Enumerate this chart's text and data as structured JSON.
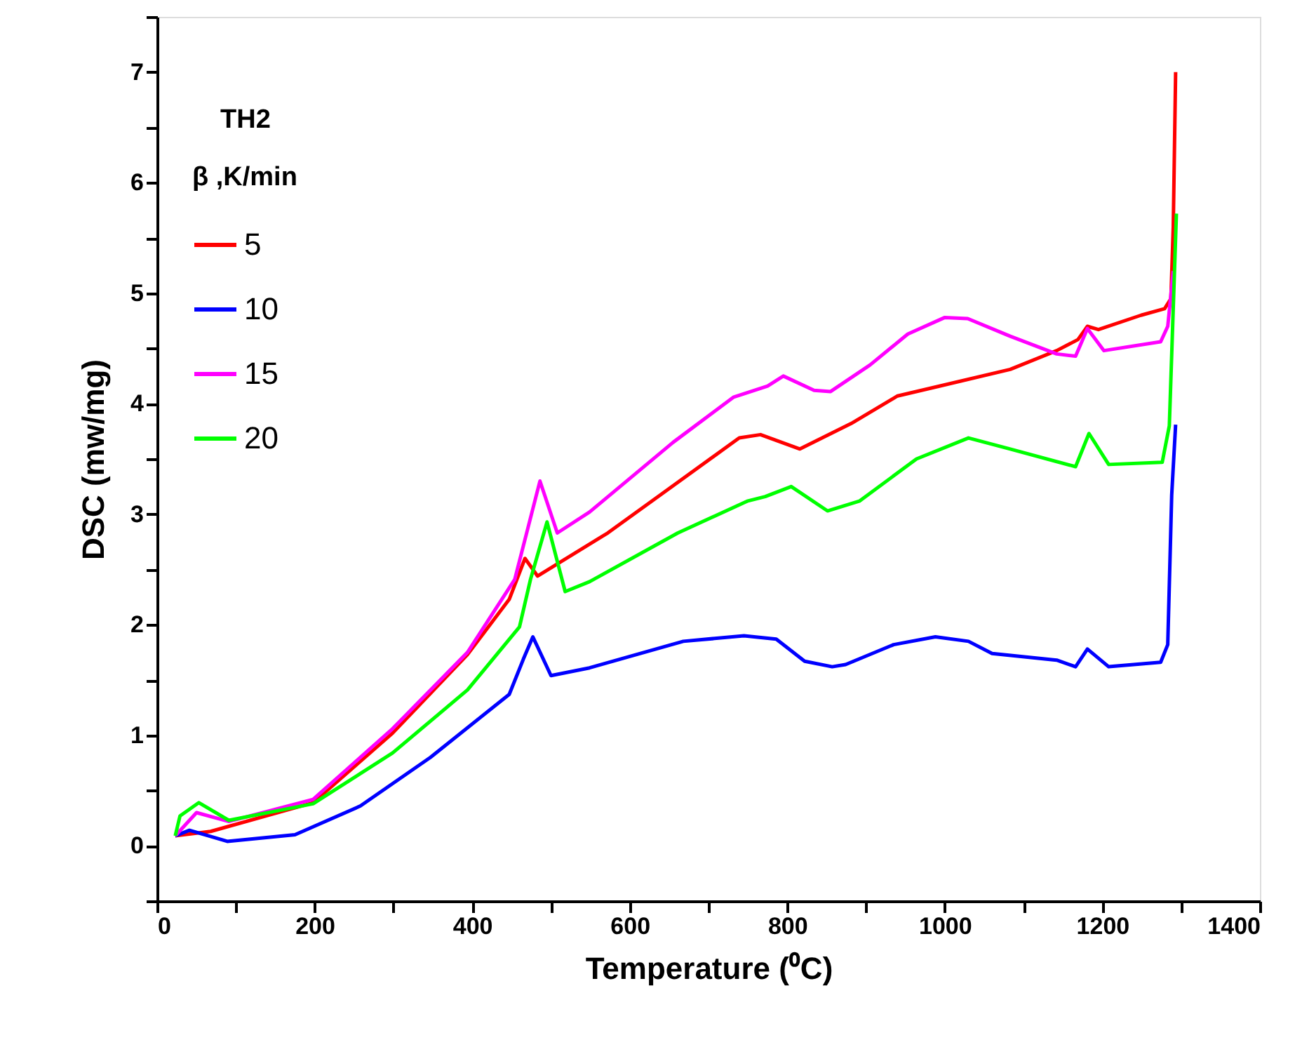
{
  "chart_data": {
    "type": "line",
    "xlabel": "Temperature (⁰C)",
    "ylabel": "DSC (mw/mg)",
    "legend_title": "β ,K/min",
    "annotations": [
      "TH2"
    ],
    "xlim": [
      0,
      1400
    ],
    "ylim": [
      -0.5,
      7.5
    ],
    "xticks": [
      0,
      {
        "value": 100,
        "label": null
      },
      200,
      {
        "value": 300,
        "label": null
      },
      400,
      {
        "value": 500,
        "label": null
      },
      600,
      {
        "value": 700,
        "label": null
      },
      800,
      {
        "value": 900,
        "label": null
      },
      1000,
      {
        "value": 1100,
        "label": null
      },
      1200,
      {
        "value": 1300,
        "label": null
      },
      1400
    ],
    "yticks": [
      {
        "value": -0.5,
        "label": null
      },
      0,
      {
        "value": 0.5,
        "label": null
      },
      1,
      {
        "value": 1.5,
        "label": null
      },
      2,
      {
        "value": 2.5,
        "label": null
      },
      3,
      {
        "value": 3.5,
        "label": null
      },
      4,
      {
        "value": 4.5,
        "label": null
      },
      5,
      {
        "value": 5.5,
        "label": null
      },
      6,
      {
        "value": 6.5,
        "label": null
      },
      7,
      {
        "value": 7.5,
        "label": null
      }
    ],
    "grid": false,
    "legend": "top left",
    "marker": "none",
    "line_style": "solid",
    "series": [
      {
        "name": "5",
        "color": "#ff0000",
        "x": [
          23,
          68,
          198,
          299,
          394,
          447,
          467,
          483,
          549,
          572,
          638,
          739,
          766,
          816,
          881,
          940,
          994,
          1083,
          1142,
          1169,
          1181,
          1195,
          1249,
          1279,
          1287,
          1290,
          1293
        ],
        "values": [
          0.09,
          0.13,
          0.39,
          1.02,
          1.73,
          2.23,
          2.6,
          2.44,
          2.73,
          2.83,
          3.17,
          3.69,
          3.72,
          3.59,
          3.82,
          4.07,
          4.16,
          4.31,
          4.48,
          4.58,
          4.7,
          4.67,
          4.8,
          4.86,
          4.95,
          5.6,
          7.0
        ]
      },
      {
        "name": "10",
        "color": "#0000ff",
        "x": [
          23,
          41,
          89,
          175,
          258,
          347,
          447,
          465,
          477,
          500,
          549,
          668,
          745,
          786,
          822,
          857,
          874,
          935,
          988,
          1030,
          1060,
          1142,
          1166,
          1181,
          1208,
          1274,
          1283,
          1288,
          1293
        ],
        "values": [
          0.09,
          0.14,
          0.04,
          0.1,
          0.36,
          0.8,
          1.37,
          1.69,
          1.89,
          1.54,
          1.61,
          1.85,
          1.9,
          1.87,
          1.67,
          1.62,
          1.64,
          1.82,
          1.89,
          1.85,
          1.74,
          1.68,
          1.62,
          1.78,
          1.62,
          1.66,
          1.82,
          3.17,
          3.81
        ]
      },
      {
        "name": "15",
        "color": "#ff00ff",
        "x": [
          23,
          50,
          91,
          198,
          299,
          394,
          454,
          486,
          508,
          549,
          655,
          732,
          775,
          795,
          834,
          855,
          905,
          953,
          1000,
          1029,
          1083,
          1142,
          1166,
          1181,
          1202,
          1274,
          1283,
          1290
        ],
        "values": [
          0.09,
          0.3,
          0.22,
          0.42,
          1.06,
          1.75,
          2.41,
          3.3,
          2.83,
          3.02,
          3.65,
          4.06,
          4.16,
          4.25,
          4.12,
          4.11,
          4.35,
          4.63,
          4.78,
          4.77,
          4.61,
          4.45,
          4.43,
          4.68,
          4.48,
          4.56,
          4.7,
          5.2
        ]
      },
      {
        "name": "20",
        "color": "#00ff00",
        "x": [
          23,
          29,
          53,
          91,
          198,
          299,
          394,
          460,
          474,
          495,
          518,
          549,
          638,
          661,
          750,
          772,
          805,
          851,
          892,
          964,
          1030,
          1083,
          1166,
          1183,
          1208,
          1276,
          1285,
          1294
        ],
        "values": [
          0.09,
          0.27,
          0.39,
          0.23,
          0.38,
          0.84,
          1.41,
          1.98,
          2.41,
          2.93,
          2.3,
          2.39,
          2.74,
          2.83,
          3.12,
          3.16,
          3.25,
          3.03,
          3.12,
          3.5,
          3.69,
          3.59,
          3.43,
          3.73,
          3.45,
          3.47,
          3.8,
          5.72
        ]
      }
    ]
  }
}
